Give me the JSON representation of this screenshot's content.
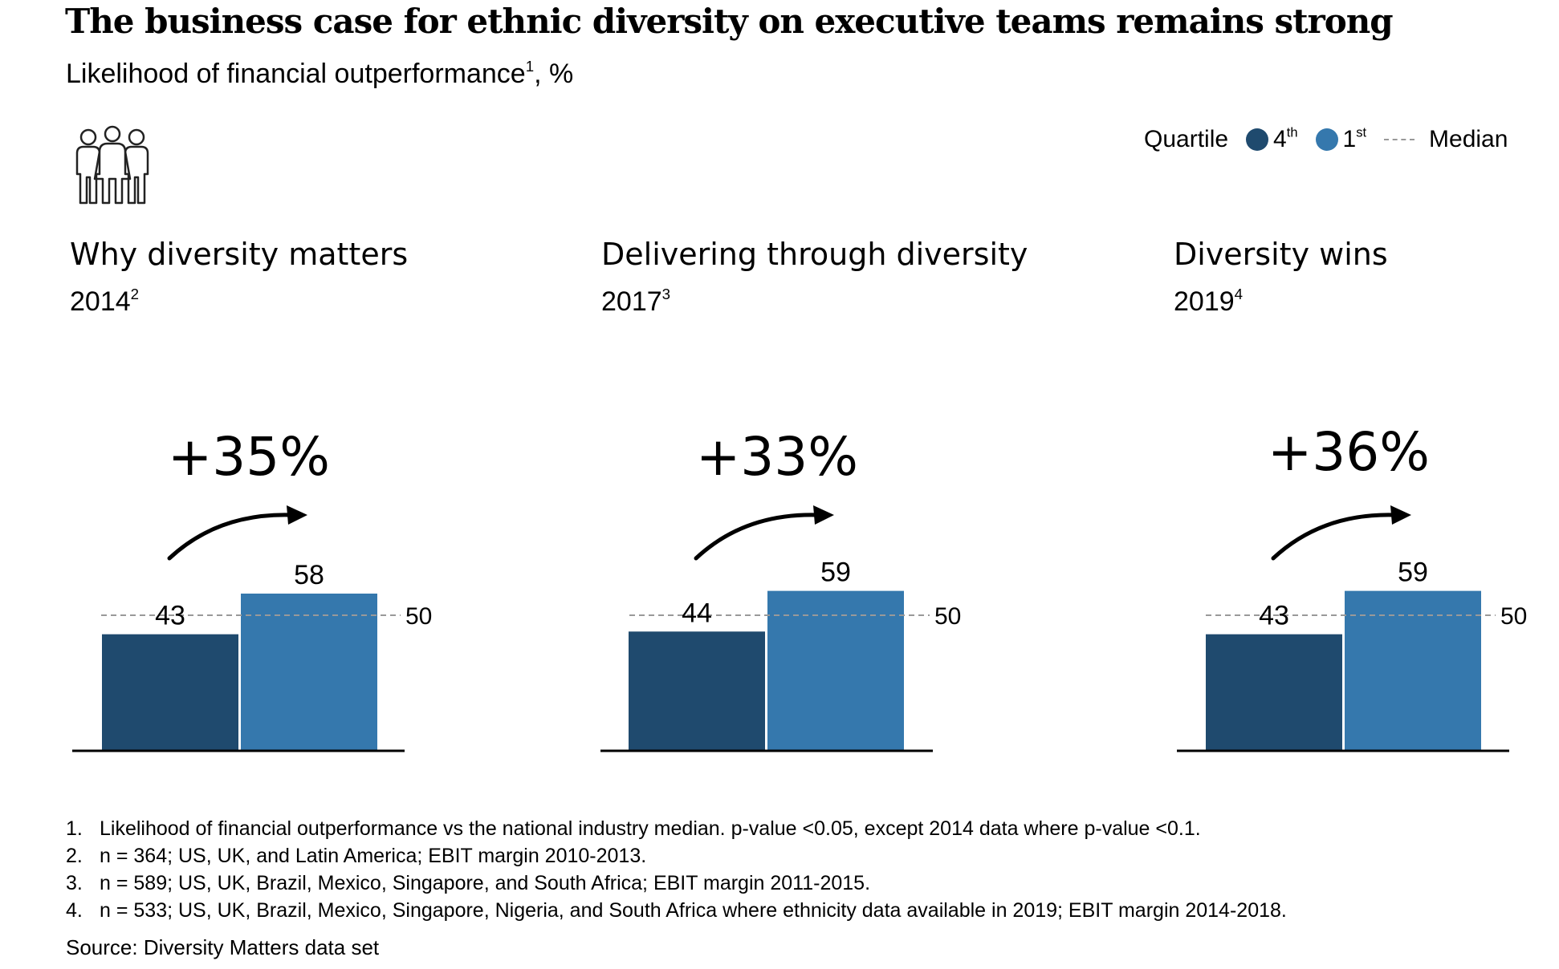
{
  "title": "The business case for ethnic diversity on executive teams remains strong",
  "subtitle": {
    "text": "Likelihood of financial outperformance",
    "sup": "1",
    "suffix": ", %"
  },
  "legend": {
    "label": "Quartile",
    "q4": {
      "label": "4",
      "sup": "th"
    },
    "q1": {
      "label": "1",
      "sup": "st"
    },
    "median_label": "Median"
  },
  "colors": {
    "q4": "#1f4a6e",
    "q1": "#3578ad",
    "median": "#999999",
    "axis": "#000000"
  },
  "icon": "people-group-icon",
  "chart_data": [
    {
      "type": "bar",
      "title": "Why diversity matters",
      "year": "2014",
      "year_sup": "2",
      "uplift": "+35%",
      "categories": [
        "4th quartile",
        "1st quartile"
      ],
      "values": [
        43,
        58
      ],
      "value_labels": [
        "43",
        "58"
      ],
      "median": 50,
      "median_label": "50",
      "ylim": [
        0,
        60
      ]
    },
    {
      "type": "bar",
      "title": "Delivering through diversity",
      "year": "2017",
      "year_sup": "3",
      "uplift": "+33%",
      "categories": [
        "4th quartile",
        "1st quartile"
      ],
      "values": [
        44,
        59
      ],
      "value_labels": [
        "44",
        "59"
      ],
      "median": 50,
      "median_label": "50",
      "ylim": [
        0,
        60
      ]
    },
    {
      "type": "bar",
      "title": "Diversity wins",
      "year": "2019",
      "year_sup": "4",
      "uplift": "+36%",
      "categories": [
        "4th quartile",
        "1st quartile"
      ],
      "values": [
        43,
        59
      ],
      "value_labels": [
        "43",
        "59"
      ],
      "median": 50,
      "median_label": "50",
      "ylim": [
        0,
        60
      ]
    }
  ],
  "footnotes": [
    {
      "num": "1.",
      "text": "Likelihood of financial outperformance vs the national industry median. p-value <0.05, except 2014 data where p-value <0.1."
    },
    {
      "num": "2.",
      "text": "n = 364; US, UK, and Latin America; EBIT margin 2010-2013."
    },
    {
      "num": "3.",
      "text": "n = 589; US, UK, Brazil, Mexico, Singapore, and South Africa; EBIT margin 2011-2015."
    },
    {
      "num": "4.",
      "text": "n = 533; US, UK, Brazil, Mexico, Singapore, Nigeria, and South Africa where ethnicity data available in 2019; EBIT margin 2014-2018."
    }
  ],
  "source": "Source: Diversity Matters data set"
}
